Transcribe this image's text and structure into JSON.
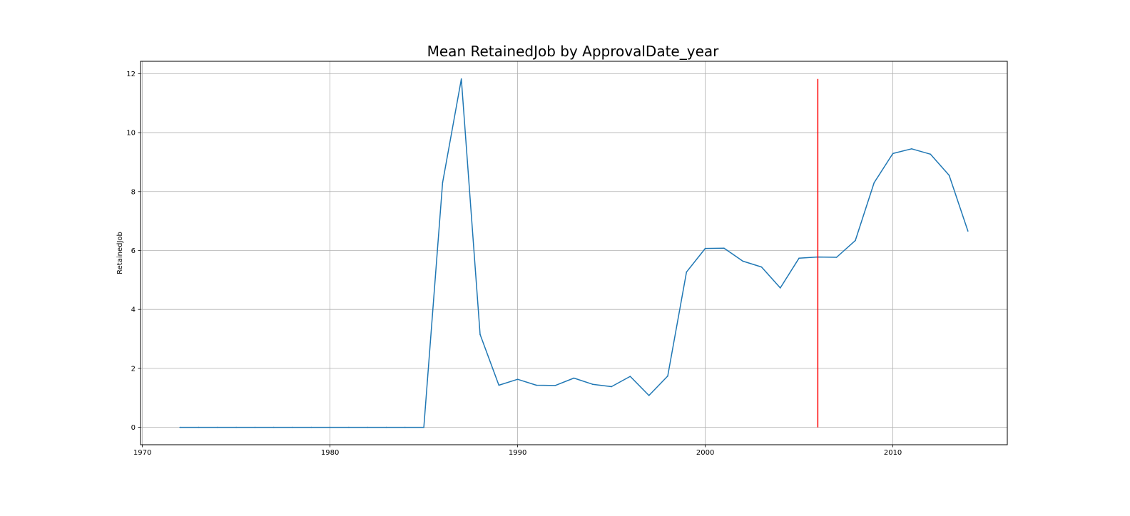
{
  "chart_data": {
    "type": "line",
    "title": "Mean RetainedJob by ApprovalDate_year",
    "xlabel": "",
    "ylabel": "RetainedJob",
    "xlim": [
      1969.9,
      2016.1
    ],
    "ylim": [
      -0.59,
      12.42
    ],
    "x_ticks": [
      1970,
      1980,
      1990,
      2000,
      2010
    ],
    "y_ticks": [
      0,
      2,
      4,
      6,
      8,
      10,
      12
    ],
    "grid": true,
    "series_color": "#1f77b4",
    "x": [
      1972,
      1973,
      1974,
      1975,
      1976,
      1977,
      1978,
      1979,
      1980,
      1981,
      1982,
      1983,
      1984,
      1985,
      1986,
      1987,
      1988,
      1989,
      1990,
      1991,
      1992,
      1993,
      1994,
      1995,
      1996,
      1997,
      1998,
      1999,
      2000,
      2001,
      2002,
      2003,
      2004,
      2005,
      2006,
      2007,
      2008,
      2009,
      2010,
      2011,
      2012,
      2013,
      2014
    ],
    "values": [
      0,
      0,
      0,
      0,
      0,
      0,
      0,
      0,
      0,
      0,
      0,
      0,
      0,
      0,
      8.3,
      11.82,
      3.15,
      1.43,
      1.63,
      1.43,
      1.42,
      1.67,
      1.46,
      1.38,
      1.73,
      1.08,
      1.74,
      5.27,
      6.07,
      6.08,
      5.64,
      5.44,
      4.73,
      5.74,
      5.78,
      5.77,
      6.34,
      8.3,
      9.29,
      9.45,
      9.27,
      8.55,
      6.66
    ],
    "annotations": [
      {
        "type": "vline",
        "x": 2006,
        "y0": 0,
        "y1": 11.82,
        "color": "#ff0000"
      }
    ]
  }
}
